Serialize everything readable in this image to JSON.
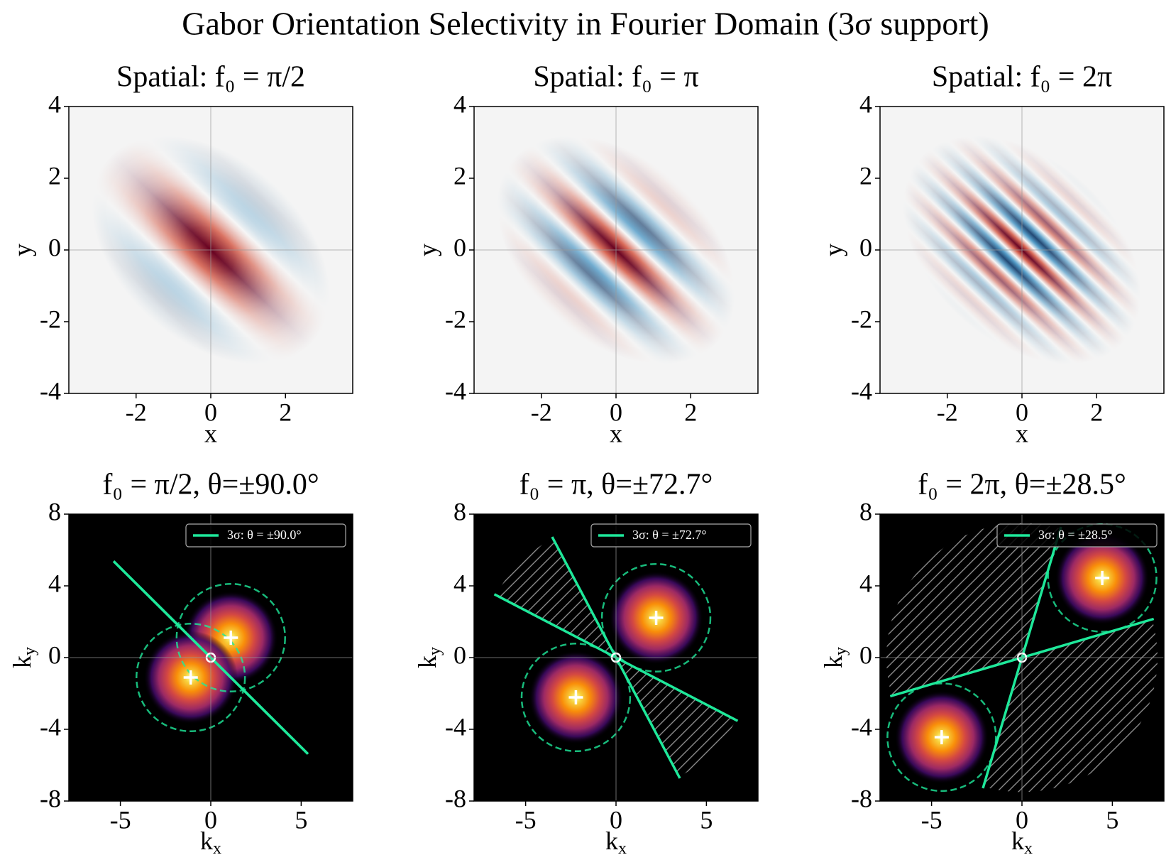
{
  "title": "Gabor Orientation Selectivity in Fourier Domain (3σ support)",
  "chart_data": [
    {
      "type": "gabor",
      "title": "Spatial: f₀ = π/2",
      "xlabel": "x",
      "ylabel": "y",
      "xlim": [
        -3.8,
        3.8
      ],
      "ylim": [
        -4,
        4
      ],
      "xticks": [
        -2,
        0,
        2
      ],
      "yticks": [
        -4,
        -2,
        0,
        2,
        4
      ],
      "zero_lines": true,
      "background": "#f4f4f4",
      "colormap": [
        "#67001f",
        "#d6604d",
        "#f7f7f7",
        "#4393c3",
        "#053061"
      ]
    },
    {
      "type": "gabor",
      "title": "Spatial:  f₀ = π",
      "xlabel": "x",
      "ylabel": "y",
      "xlim": [
        -3.8,
        3.8
      ],
      "ylim": [
        -4,
        4
      ],
      "xticks": [
        -2,
        0,
        2
      ],
      "yticks": [
        -4,
        -2,
        0,
        2,
        4
      ],
      "zero_lines": true,
      "background": "#f4f4f4",
      "colormap": [
        "#67001f",
        "#d6604d",
        "#f7f7f7",
        "#4393c3",
        "#053061"
      ]
    },
    {
      "type": "gabor",
      "title": "Spatial: f₀ = 2π",
      "xlabel": "x",
      "ylabel": "y",
      "xlim": [
        -3.8,
        3.8
      ],
      "ylim": [
        -4,
        4
      ],
      "xticks": [
        -2,
        0,
        2
      ],
      "yticks": [
        -4,
        -2,
        0,
        2,
        4
      ],
      "zero_lines": true,
      "background": "#f4f4f4",
      "colormap": [
        "#67001f",
        "#d6604d",
        "#f7f7f7",
        "#4393c3",
        "#053061"
      ]
    },
    {
      "type": "fourier",
      "title": "f₀ = π/2, θ=±90.0°",
      "xlabel": {
        "text": "k",
        "sub": "x"
      },
      "ylabel": {
        "text": "k",
        "sub": "y"
      },
      "xlim": [
        -7.85,
        7.85
      ],
      "ylim": [
        -8,
        8
      ],
      "xticks": [
        -5,
        0,
        5
      ],
      "yticks": [
        -8,
        -4,
        0,
        4,
        8
      ],
      "zero_lines": true,
      "background": "#000000",
      "hatch_color": "#8a8a8a",
      "peaks": {
        "x": [
          1.11,
          -1.11
        ],
        "y": [
          1.11,
          -1.11
        ]
      },
      "support_radius": 3,
      "theta": 90.0,
      "series": [
        {
          "name": "3σ: θ = ±90.0°",
          "color": "#1ee89a"
        }
      ],
      "legend": "upper right"
    },
    {
      "type": "fourier",
      "title": "f₀ = π, θ=±72.7°",
      "xlabel": {
        "text": "k",
        "sub": "x"
      },
      "ylabel": {
        "text": "k",
        "sub": "y"
      },
      "xlim": [
        -7.85,
        7.85
      ],
      "ylim": [
        -8,
        8
      ],
      "xticks": [
        -5,
        0,
        5
      ],
      "yticks": [
        -8,
        -4,
        0,
        4,
        8
      ],
      "zero_lines": true,
      "background": "#000000",
      "hatch_color": "#8a8a8a",
      "peaks": {
        "x": [
          2.22,
          -2.22
        ],
        "y": [
          2.22,
          -2.22
        ]
      },
      "support_radius": 3,
      "theta": 72.7,
      "series": [
        {
          "name": "3σ: θ = ±72.7°",
          "color": "#1ee89a"
        }
      ],
      "legend": "upper right"
    },
    {
      "type": "fourier",
      "title": "f₀ = 2π, θ=±28.5°",
      "xlabel": {
        "text": "k",
        "sub": "x"
      },
      "ylabel": {
        "text": "k",
        "sub": "y"
      },
      "xlim": [
        -7.85,
        7.85
      ],
      "ylim": [
        -8,
        8
      ],
      "xticks": [
        -5,
        0,
        5
      ],
      "yticks": [
        -8,
        -4,
        0,
        4,
        8
      ],
      "zero_lines": true,
      "background": "#000000",
      "hatch_color": "#8a8a8a",
      "peaks": {
        "x": [
          4.44,
          -4.44
        ],
        "y": [
          4.44,
          -4.44
        ]
      },
      "support_radius": 3,
      "theta": 28.5,
      "series": [
        {
          "name": "3σ: θ = ±28.5°",
          "color": "#1ee89a"
        }
      ],
      "legend": "upper right"
    }
  ]
}
